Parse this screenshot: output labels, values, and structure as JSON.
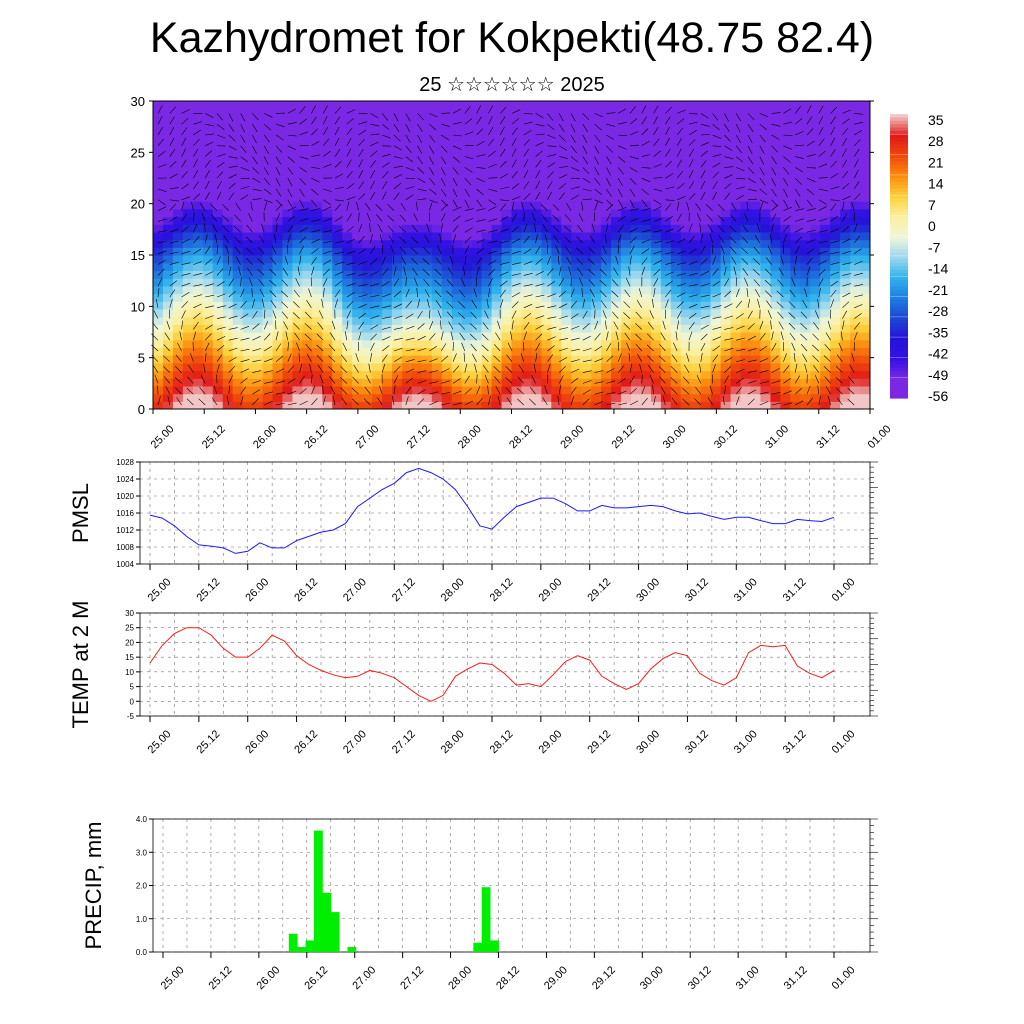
{
  "title": "Kazhydromet for Kokpekti(48.75 82.4)",
  "subtitle": "25 ☆☆☆☆☆☆ 2025",
  "colorbar": {
    "labels": [
      "35",
      "28",
      "21",
      "14",
      "7",
      "0",
      "-7",
      "-14",
      "-21",
      "-28",
      "-35",
      "-42",
      "-49",
      "-56"
    ],
    "colors": [
      "#f3c6c6",
      "#e01919",
      "#f04a0c",
      "#fb8d0e",
      "#fcd13c",
      "#fbf0a0",
      "#eef6d8",
      "#9bd7ef",
      "#2fb2ec",
      "#1f7ee0",
      "#1d46d4",
      "#2414d6",
      "#3412e4",
      "#7a28e4"
    ]
  },
  "chart_data": [
    {
      "id": "cross-section",
      "type": "heatmap",
      "title": "",
      "ylabel": "",
      "ylim": [
        0,
        30
      ],
      "yticks": [
        0,
        5,
        10,
        15,
        20,
        25,
        30
      ],
      "xticks": [
        "25.00",
        "25.12",
        "26.00",
        "26.12",
        "27.00",
        "27.12",
        "28.00",
        "28.12",
        "29.00",
        "29.12",
        "30.00",
        "30.12",
        "31.00",
        "31.12",
        "01.00"
      ],
      "zlim": [
        -56,
        35
      ],
      "wind_barbs": true
    },
    {
      "id": "pmsl",
      "type": "line",
      "ylabel": "PMSL",
      "ylim": [
        1004,
        1028
      ],
      "yticks": [
        1004,
        1008,
        1012,
        1016,
        1020,
        1024,
        1028
      ],
      "xticks": [
        "25.00",
        "25.12",
        "26.00",
        "26.12",
        "27.00",
        "27.12",
        "28.00",
        "28.12",
        "29.00",
        "29.12",
        "30.00",
        "30.12",
        "31.00",
        "31.12",
        "01.00"
      ],
      "color": "#1a1aff",
      "values": [
        1015.5,
        1014.8,
        1013,
        1010.5,
        1008.5,
        1008.2,
        1007.8,
        1006.5,
        1007,
        1009,
        1007.8,
        1007.8,
        1009.5,
        1010.5,
        1011.5,
        1012,
        1013.5,
        1017.5,
        1019.5,
        1021.5,
        1023,
        1025.5,
        1026.5,
        1025.5,
        1024,
        1021.5,
        1017.5,
        1013,
        1012.2,
        1015,
        1017.5,
        1018.5,
        1019.5,
        1019.5,
        1018.2,
        1016.5,
        1016.5,
        1017.8,
        1017.2,
        1017.2,
        1017.5,
        1017.8,
        1017.5,
        1016.5,
        1015.8,
        1016,
        1015.2,
        1014.5,
        1015,
        1015,
        1014.2,
        1013.5,
        1013.5,
        1014.5,
        1014.2,
        1014,
        1015
      ]
    },
    {
      "id": "t2m",
      "type": "line",
      "ylabel": "TEMP at 2 M",
      "ylim": [
        -5,
        30
      ],
      "yticks": [
        -5,
        0,
        5,
        10,
        15,
        20,
        25,
        30
      ],
      "xticks": [
        "25.00",
        "25.12",
        "26.00",
        "26.12",
        "27.00",
        "27.12",
        "28.00",
        "28.12",
        "29.00",
        "29.12",
        "30.00",
        "30.12",
        "31.00",
        "31.12",
        "01.00"
      ],
      "color": "#ff1a1a",
      "values": [
        13,
        19,
        23,
        25,
        25,
        22.5,
        18,
        15,
        15,
        18,
        22.5,
        20.5,
        15.5,
        12.5,
        10.5,
        9,
        8,
        8.5,
        10.5,
        9.5,
        8,
        5,
        2,
        0,
        2,
        8.5,
        11,
        13,
        12.5,
        9.5,
        5.5,
        6,
        5,
        9,
        13.5,
        15.5,
        14,
        8.5,
        6,
        4,
        6,
        11,
        14.5,
        16.5,
        15.5,
        9.5,
        7,
        5.5,
        8,
        16.5,
        19,
        18.5,
        19,
        12,
        9.5,
        8,
        10.5
      ]
    },
    {
      "id": "precip",
      "type": "bar",
      "ylabel": "PRECIP, mm",
      "ylim": [
        0,
        4
      ],
      "yticks": [
        0.0,
        1.0,
        2.0,
        3.0,
        4.0
      ],
      "ytick_labels": [
        "0.0",
        "1.0",
        "2.0",
        "3.0",
        "4.0"
      ],
      "xticks": [
        "25.00",
        "25.12",
        "26.00",
        "26.12",
        "27.00",
        "27.12",
        "28.00",
        "28.12",
        "29.00",
        "29.12",
        "30.00",
        "30.12",
        "31.00",
        "31.12",
        "01.00"
      ],
      "color": "#00ee00",
      "values": [
        0,
        0,
        0,
        0,
        0,
        0,
        0,
        0,
        0,
        0,
        0,
        0,
        0,
        0,
        0,
        0.55,
        0.15,
        0.35,
        3.65,
        1.78,
        1.2,
        0,
        0.15,
        0,
        0,
        0,
        0,
        0,
        0,
        0,
        0,
        0,
        0,
        0,
        0,
        0,
        0,
        0.28,
        1.95,
        0.35,
        0,
        0,
        0,
        0,
        0,
        0,
        0,
        0,
        0,
        0,
        0,
        0,
        0,
        0,
        0,
        0,
        0,
        0,
        0,
        0,
        0,
        0,
        0,
        0,
        0,
        0,
        0,
        0,
        0,
        0,
        0,
        0,
        0,
        0,
        0,
        0,
        0,
        0,
        0,
        0,
        0
      ]
    }
  ]
}
